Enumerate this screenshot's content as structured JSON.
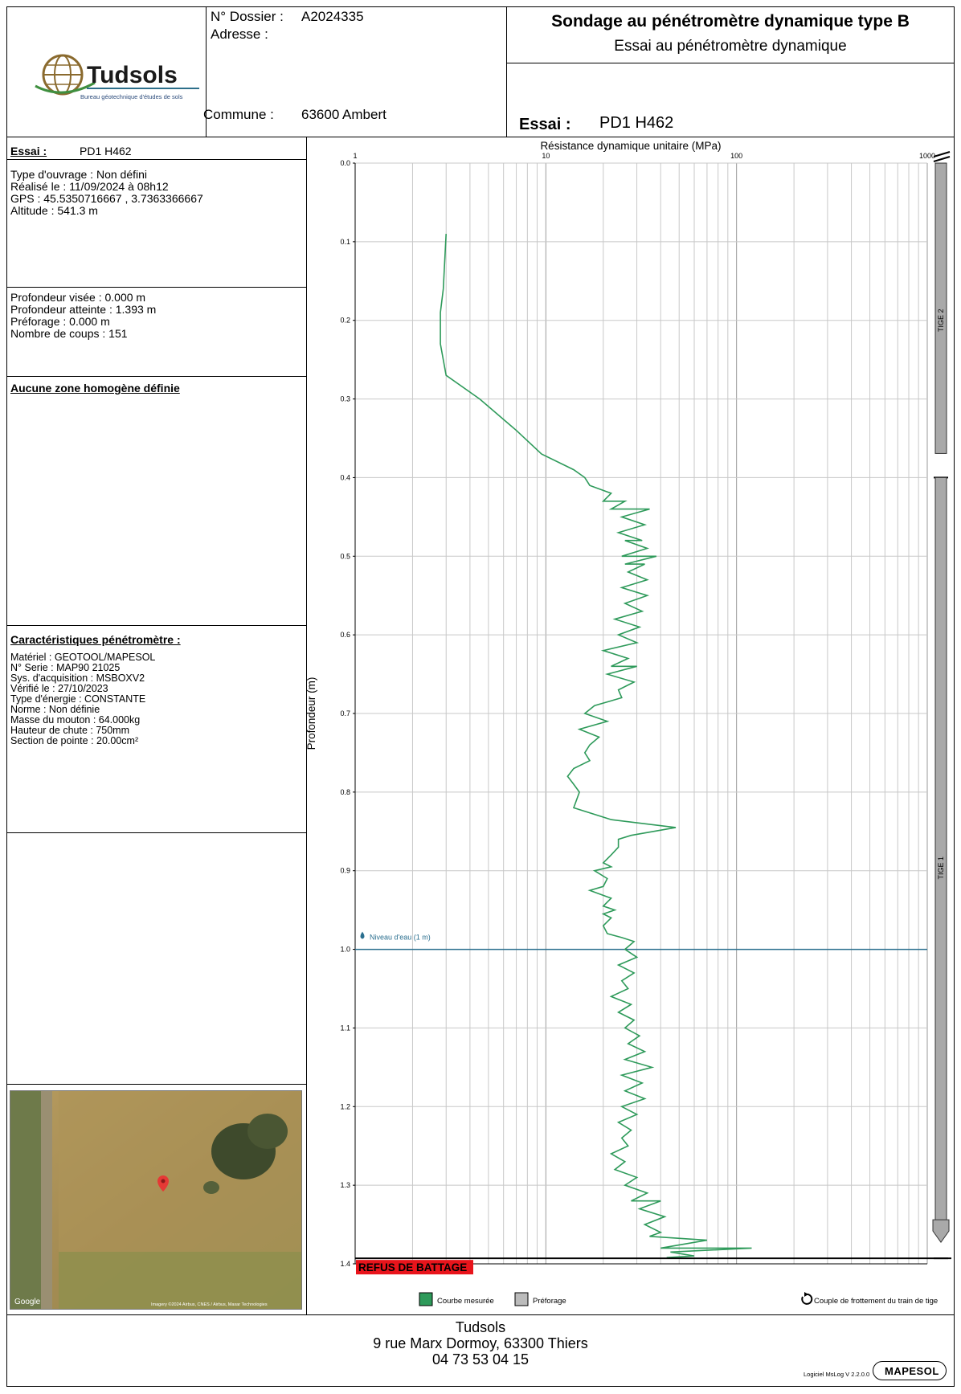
{
  "header": {
    "logo_text": "Tudsols",
    "logo_subtitle": "Bureau géotechnique d'études de sols",
    "dossier_label": "N° Dossier :",
    "dossier_value": "A2024335",
    "adresse_label": "Adresse :",
    "commune_label": "Commune :",
    "commune_value": "63600 Ambert",
    "title": "Sondage au pénétromètre dynamique type B",
    "subtitle": "Essai au pénétromètre dynamique",
    "essai_label": "Essai :",
    "essai_value": "PD1 H462"
  },
  "left_panel": {
    "essai_label": "Essai :",
    "essai_value": "PD1 H462",
    "info_lines": [
      "Type d'ouvrage : Non défini",
      "Réalisé le  : 11/09/2024  à 08h12",
      "GPS : 45.5350716667 , 3.7363366667",
      "Altitude : 541.3 m"
    ],
    "depth_lines": [
      "Profondeur visée : 0.000 m",
      "Profondeur atteinte : 1.393 m",
      "Préforage : 0.000 m",
      "Nombre de coups : 151"
    ],
    "zone_title": "Aucune zone homogène définie",
    "carac_title": "Caractéristiques pénétromètre :",
    "carac_lines": [
      "Matériel : GEOTOOL/MAPESOL",
      "N° Serie : MAP90  21025",
      "Sys. d'acquisition : MSBOXV2",
      "Vérifié le : 27/10/2023",
      "Type d'énergie : CONSTANTE",
      "Norme : Non définie",
      "Masse du mouton : 64.000kg",
      "Hauteur de chute : 750mm",
      "Section de pointe : 20.00cm²"
    ],
    "map_google": "Google",
    "map_credit": "Imagery ©2024 Airbus, CNES / Airbus, Maxar Technologies"
  },
  "footer": {
    "company": "Tudsols",
    "address": "9 rue Marx Dormoy, 63300 Thiers",
    "phone": "04 73 53 04 15",
    "software": "Logiciel MsLog V 2.2.0.0",
    "brand": "MAPESOL"
  },
  "colors": {
    "curve": "#2e9a5a",
    "water": "#2b6f8f",
    "refus": "#e8141b",
    "rod": "#a9a9a9"
  },
  "chart_data": {
    "type": "line",
    "title": "Résistance dynamique unitaire (MPa)",
    "xlabel": "Résistance dynamique unitaire (MPa)",
    "ylabel": "Profondeur (m)",
    "xscale": "log",
    "xlim": [
      1,
      1000
    ],
    "ylim": [
      0.0,
      1.4
    ],
    "x_ticks": [
      "1",
      "10",
      "100",
      "1000"
    ],
    "y_ticks": [
      "0.0",
      "0.1",
      "0.2",
      "0.3",
      "0.4",
      "0.5",
      "0.6",
      "0.7",
      "0.8",
      "0.9",
      "1.0",
      "1.1",
      "1.2",
      "1.3",
      "1.4"
    ],
    "grid": true,
    "series": [
      {
        "name": "Courbe mesurée",
        "points": [
          [
            3.0,
            0.09
          ],
          [
            2.9,
            0.16
          ],
          [
            2.8,
            0.19
          ],
          [
            2.8,
            0.23
          ],
          [
            3.0,
            0.27
          ],
          [
            4.5,
            0.3
          ],
          [
            7.0,
            0.34
          ],
          [
            9.5,
            0.37
          ],
          [
            14,
            0.39
          ],
          [
            16,
            0.4
          ],
          [
            17,
            0.41
          ],
          [
            22,
            0.42
          ],
          [
            20,
            0.43
          ],
          [
            26,
            0.43
          ],
          [
            22,
            0.44
          ],
          [
            35,
            0.44
          ],
          [
            25,
            0.45
          ],
          [
            33,
            0.46
          ],
          [
            24,
            0.47
          ],
          [
            32,
            0.48
          ],
          [
            26,
            0.48
          ],
          [
            34,
            0.49
          ],
          [
            25,
            0.5
          ],
          [
            38,
            0.5
          ],
          [
            26,
            0.51
          ],
          [
            33,
            0.51
          ],
          [
            27,
            0.52
          ],
          [
            34,
            0.53
          ],
          [
            25,
            0.54
          ],
          [
            34,
            0.55
          ],
          [
            26,
            0.56
          ],
          [
            32,
            0.57
          ],
          [
            23,
            0.58
          ],
          [
            31,
            0.59
          ],
          [
            24,
            0.6
          ],
          [
            30,
            0.61
          ],
          [
            20,
            0.62
          ],
          [
            27,
            0.63
          ],
          [
            22,
            0.64
          ],
          [
            30,
            0.64
          ],
          [
            21,
            0.65
          ],
          [
            29,
            0.66
          ],
          [
            24,
            0.67
          ],
          [
            25,
            0.68
          ],
          [
            18,
            0.69
          ],
          [
            16,
            0.7
          ],
          [
            21,
            0.71
          ],
          [
            15,
            0.72
          ],
          [
            19,
            0.73
          ],
          [
            17,
            0.74
          ],
          [
            16,
            0.75
          ],
          [
            17,
            0.76
          ],
          [
            14,
            0.77
          ],
          [
            13,
            0.78
          ],
          [
            14,
            0.79
          ],
          [
            15,
            0.8
          ],
          [
            14,
            0.82
          ],
          [
            22,
            0.835
          ],
          [
            48,
            0.845
          ],
          [
            28,
            0.855
          ],
          [
            24,
            0.86
          ],
          [
            24,
            0.87
          ],
          [
            22,
            0.88
          ],
          [
            20,
            0.89
          ],
          [
            22,
            0.895
          ],
          [
            18,
            0.9
          ],
          [
            21,
            0.91
          ],
          [
            20,
            0.92
          ],
          [
            17,
            0.925
          ],
          [
            22,
            0.935
          ],
          [
            20,
            0.945
          ],
          [
            23,
            0.95
          ],
          [
            20,
            0.955
          ],
          [
            22,
            0.96
          ],
          [
            20,
            0.97
          ],
          [
            21,
            0.98
          ],
          [
            25,
            0.985
          ],
          [
            29,
            0.99
          ],
          [
            26,
            1.0
          ],
          [
            30,
            1.01
          ],
          [
            24,
            1.02
          ],
          [
            29,
            1.03
          ],
          [
            25,
            1.04
          ],
          [
            27,
            1.05
          ],
          [
            22,
            1.06
          ],
          [
            28,
            1.07
          ],
          [
            24,
            1.08
          ],
          [
            29,
            1.09
          ],
          [
            26,
            1.1
          ],
          [
            31,
            1.11
          ],
          [
            27,
            1.12
          ],
          [
            33,
            1.13
          ],
          [
            26,
            1.14
          ],
          [
            36,
            1.15
          ],
          [
            25,
            1.16
          ],
          [
            32,
            1.17
          ],
          [
            26,
            1.18
          ],
          [
            33,
            1.19
          ],
          [
            25,
            1.2
          ],
          [
            30,
            1.21
          ],
          [
            24,
            1.22
          ],
          [
            28,
            1.23
          ],
          [
            25,
            1.24
          ],
          [
            27,
            1.25
          ],
          [
            22,
            1.26
          ],
          [
            26,
            1.27
          ],
          [
            23,
            1.28
          ],
          [
            30,
            1.29
          ],
          [
            26,
            1.3
          ],
          [
            34,
            1.31
          ],
          [
            28,
            1.32
          ],
          [
            40,
            1.32
          ],
          [
            31,
            1.33
          ],
          [
            42,
            1.34
          ],
          [
            33,
            1.35
          ],
          [
            40,
            1.36
          ],
          [
            35,
            1.365
          ],
          [
            70,
            1.37
          ],
          [
            40,
            1.38
          ],
          [
            120,
            1.38
          ],
          [
            45,
            1.385
          ],
          [
            60,
            1.39
          ],
          [
            43,
            1.392
          ]
        ]
      }
    ],
    "annotations": {
      "water_level": 1.0,
      "water_label": "Niveau d'eau (1 m)",
      "refus_depth": 1.393,
      "refus_label": "REFUS DE BATTAGE",
      "rods": [
        {
          "label": "TIGE 2",
          "from": 0.0,
          "to": 0.4
        },
        {
          "label": "TIGE 1",
          "from": 0.4,
          "to": 1.393
        }
      ]
    },
    "legend": {
      "items": [
        "Courbe mesurée",
        "Préforage"
      ],
      "note": "Couple de frottement du train de tige",
      "placement": "bottom"
    }
  }
}
